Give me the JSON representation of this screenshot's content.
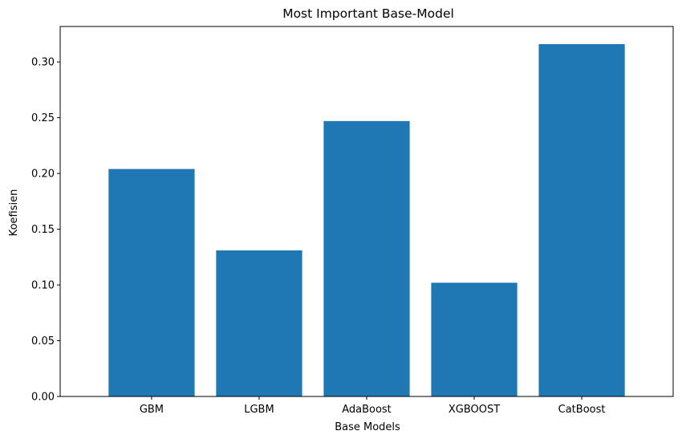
{
  "chart_data": {
    "type": "bar",
    "title": "Most Important Base-Model",
    "xlabel": "Base Models",
    "ylabel": "Koefisien",
    "categories": [
      "GBM",
      "LGBM",
      "AdaBoost",
      "XGBOOST",
      "CatBoost"
    ],
    "values": [
      0.204,
      0.131,
      0.247,
      0.102,
      0.316
    ],
    "ylim": [
      0,
      0.3318
    ],
    "yticks": [
      "0.00",
      "0.05",
      "0.10",
      "0.15",
      "0.20",
      "0.25",
      "0.30"
    ],
    "grid": false,
    "legend": "none",
    "bar_color": "#1f77b4"
  }
}
